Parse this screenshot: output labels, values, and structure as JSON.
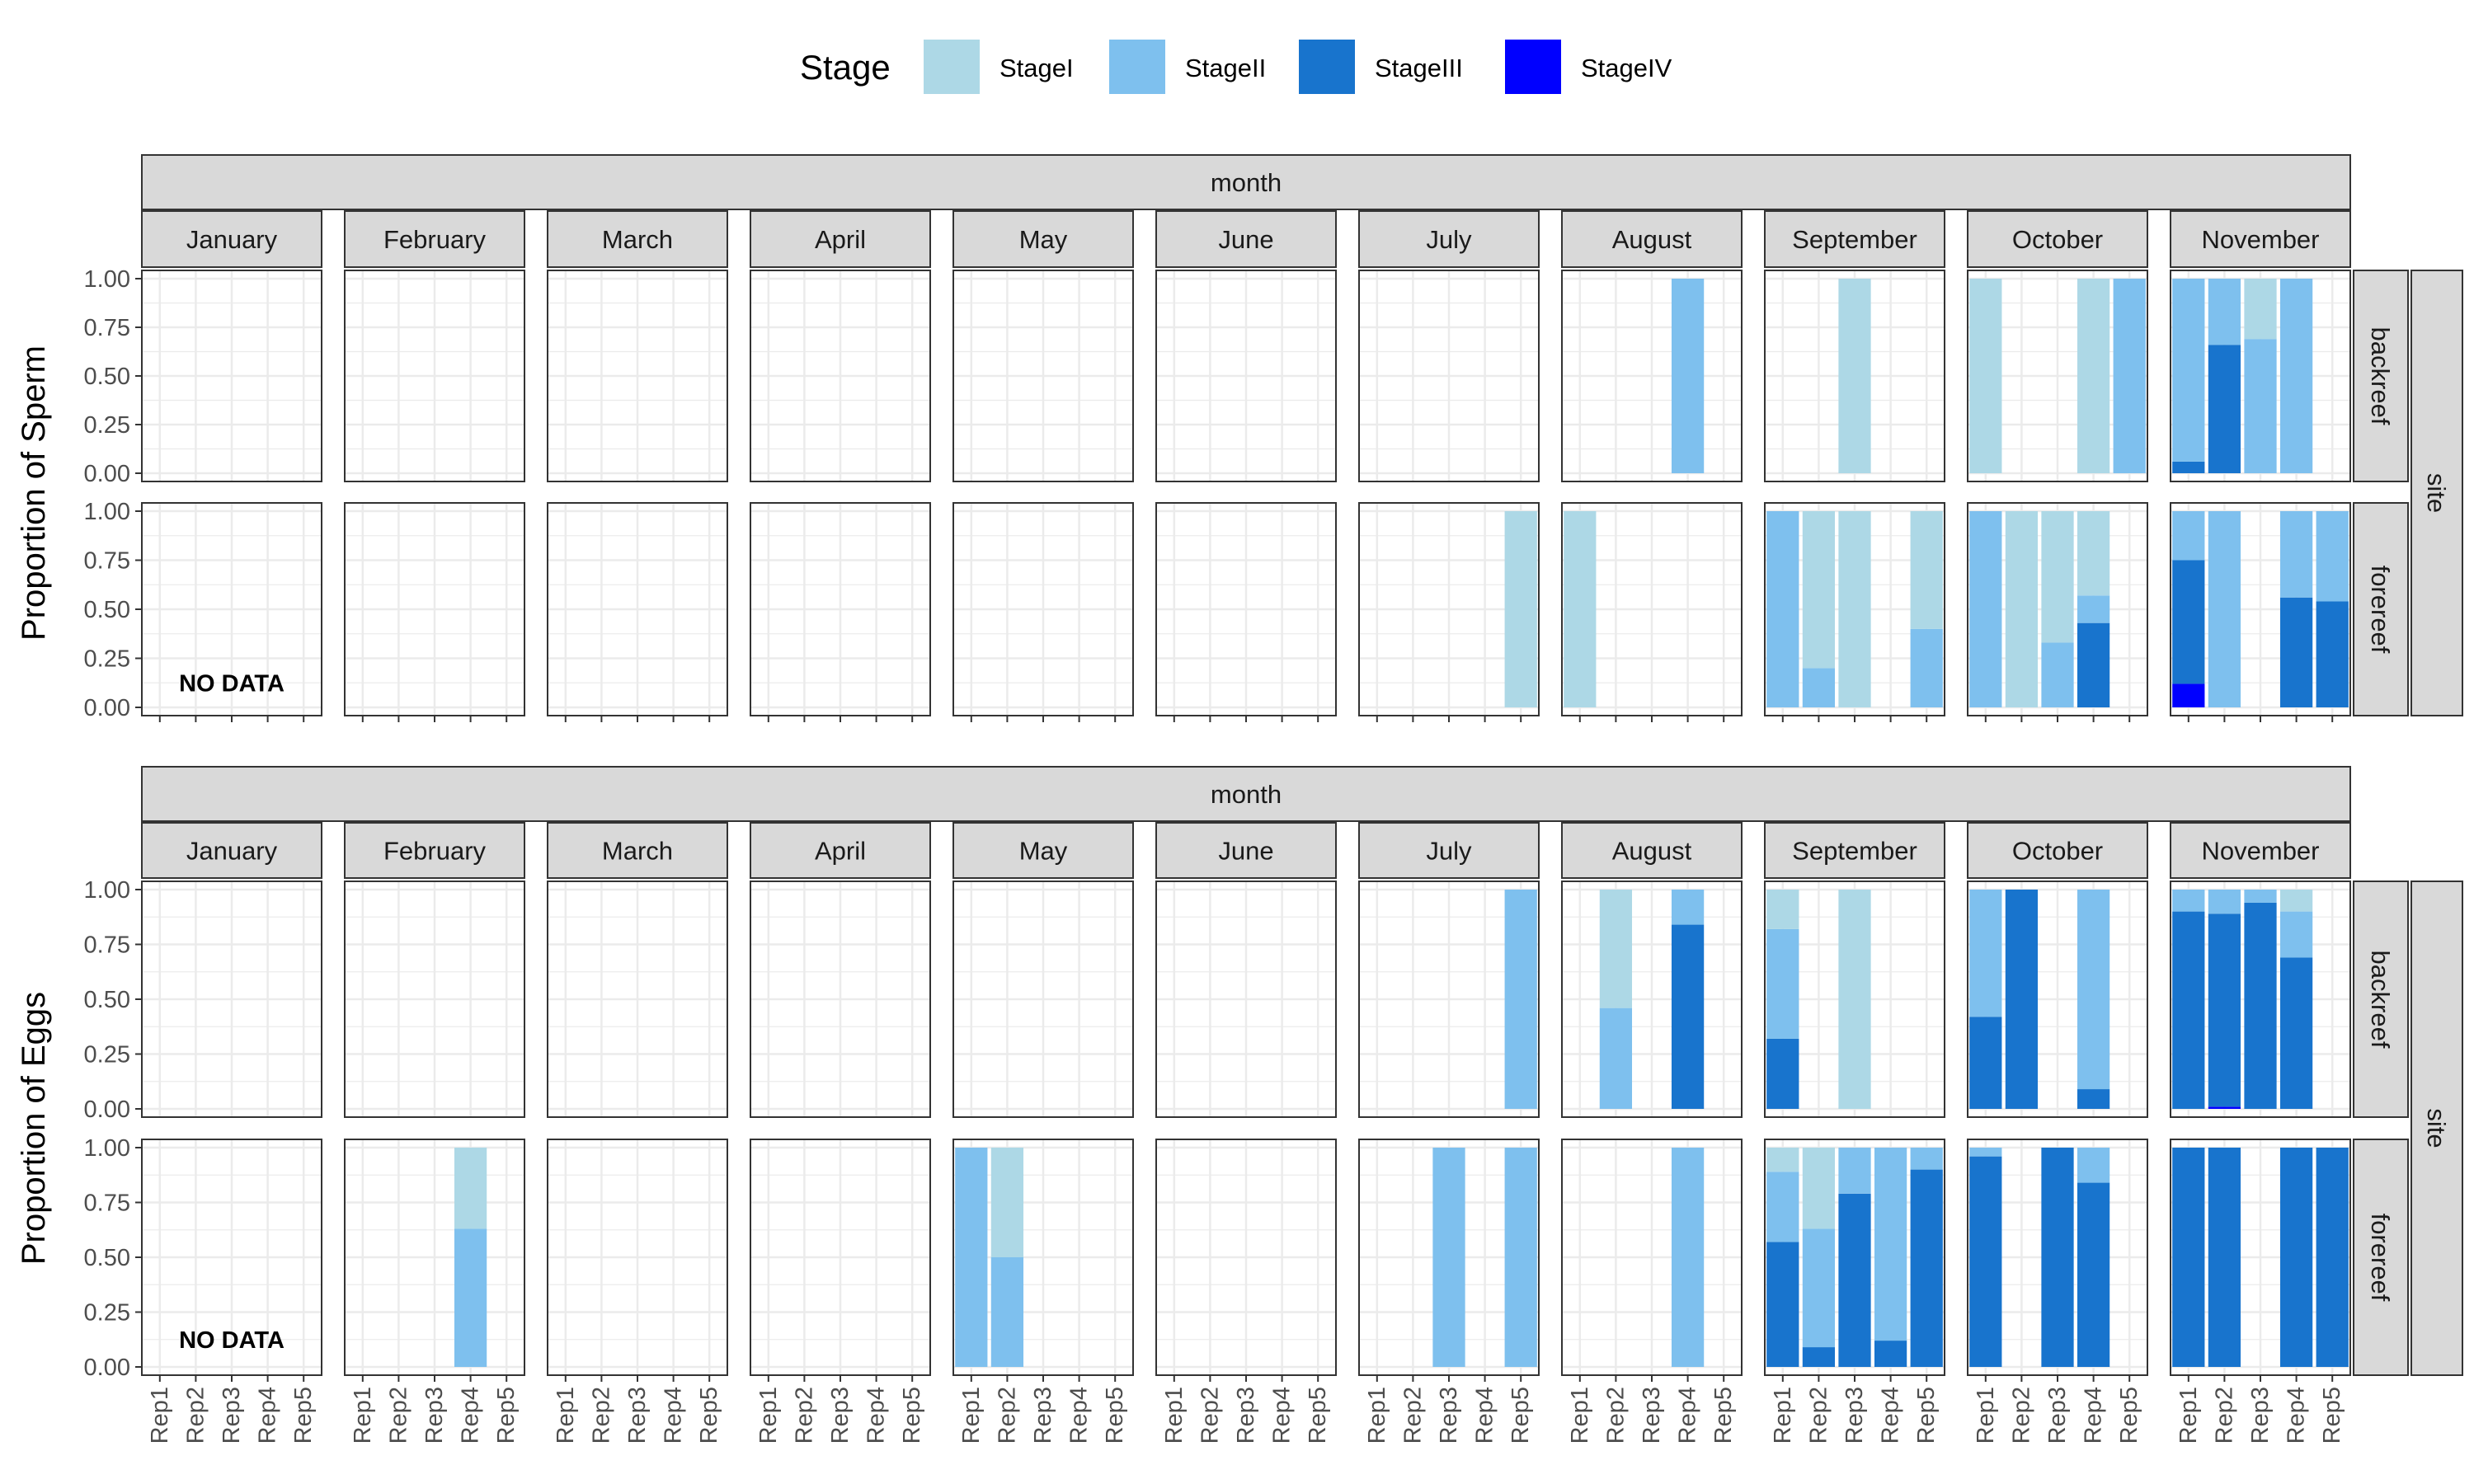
{
  "legend": {
    "title": "Stage",
    "entries": [
      {
        "label": "StageI",
        "color": "#ADD8E6"
      },
      {
        "label": "StageII",
        "color": "#7EC0EE"
      },
      {
        "label": "StageIII",
        "color": "#1874CD"
      },
      {
        "label": "StageIV",
        "color": "#0000FF"
      }
    ]
  },
  "chart_data": [
    {
      "type": "bar",
      "title": "",
      "facet_col_title": "month",
      "facet_row_title": "site",
      "ylabel": "Proportion of Sperm",
      "ylim": [
        0,
        1
      ],
      "yticks": [
        "0.00",
        "0.25",
        "0.50",
        "0.75",
        "1.00"
      ],
      "months": [
        "January",
        "February",
        "March",
        "April",
        "May",
        "June",
        "July",
        "August",
        "September",
        "October",
        "November"
      ],
      "sites": [
        "backreef",
        "forereef"
      ],
      "categories": [
        "Rep1",
        "Rep2",
        "Rep3",
        "Rep4",
        "Rep5"
      ],
      "show_x_labels": false,
      "annotations": [
        {
          "site": "forereef",
          "month": "January",
          "text": "NO DATA"
        }
      ],
      "bars": [
        {
          "site": "backreef",
          "month": "August",
          "rep": "Rep4",
          "StageII": 1.0
        },
        {
          "site": "backreef",
          "month": "September",
          "rep": "Rep3",
          "StageI": 1.0
        },
        {
          "site": "backreef",
          "month": "October",
          "rep": "Rep1",
          "StageI": 1.0
        },
        {
          "site": "backreef",
          "month": "October",
          "rep": "Rep4",
          "StageI": 1.0
        },
        {
          "site": "backreef",
          "month": "October",
          "rep": "Rep5",
          "StageII": 1.0
        },
        {
          "site": "backreef",
          "month": "November",
          "rep": "Rep1",
          "StageIII": 0.06,
          "StageII": 0.94
        },
        {
          "site": "backreef",
          "month": "November",
          "rep": "Rep2",
          "StageIII": 0.66,
          "StageII": 0.34
        },
        {
          "site": "backreef",
          "month": "November",
          "rep": "Rep3",
          "StageII": 0.69,
          "StageI": 0.31
        },
        {
          "site": "backreef",
          "month": "November",
          "rep": "Rep4",
          "StageII": 1.0
        },
        {
          "site": "forereef",
          "month": "July",
          "rep": "Rep5",
          "StageI": 1.0
        },
        {
          "site": "forereef",
          "month": "August",
          "rep": "Rep1",
          "StageI": 1.0
        },
        {
          "site": "forereef",
          "month": "September",
          "rep": "Rep1",
          "StageII": 1.0
        },
        {
          "site": "forereef",
          "month": "September",
          "rep": "Rep2",
          "StageII": 0.2,
          "StageI": 0.8
        },
        {
          "site": "forereef",
          "month": "September",
          "rep": "Rep3",
          "StageI": 1.0
        },
        {
          "site": "forereef",
          "month": "September",
          "rep": "Rep5",
          "StageII": 0.4,
          "StageI": 0.6
        },
        {
          "site": "forereef",
          "month": "October",
          "rep": "Rep1",
          "StageII": 1.0
        },
        {
          "site": "forereef",
          "month": "October",
          "rep": "Rep2",
          "StageI": 1.0
        },
        {
          "site": "forereef",
          "month": "October",
          "rep": "Rep3",
          "StageII": 0.33,
          "StageI": 0.67
        },
        {
          "site": "forereef",
          "month": "October",
          "rep": "Rep4",
          "StageIII": 0.43,
          "StageII": 0.14,
          "StageI": 0.43
        },
        {
          "site": "forereef",
          "month": "November",
          "rep": "Rep1",
          "StageIV": 0.12,
          "StageIII": 0.63,
          "StageII": 0.25
        },
        {
          "site": "forereef",
          "month": "November",
          "rep": "Rep2",
          "StageII": 1.0
        },
        {
          "site": "forereef",
          "month": "November",
          "rep": "Rep4",
          "StageIII": 0.56,
          "StageII": 0.44
        },
        {
          "site": "forereef",
          "month": "November",
          "rep": "Rep5",
          "StageIII": 0.54,
          "StageII": 0.46
        }
      ]
    },
    {
      "type": "bar",
      "title": "",
      "facet_col_title": "month",
      "facet_row_title": "site",
      "ylabel": "Proportion of Eggs",
      "ylim": [
        0,
        1
      ],
      "yticks": [
        "0.00",
        "0.25",
        "0.50",
        "0.75",
        "1.00"
      ],
      "months": [
        "January",
        "February",
        "March",
        "April",
        "May",
        "June",
        "July",
        "August",
        "September",
        "October",
        "November"
      ],
      "sites": [
        "backreef",
        "forereef"
      ],
      "categories": [
        "Rep1",
        "Rep2",
        "Rep3",
        "Rep4",
        "Rep5"
      ],
      "show_x_labels": true,
      "annotations": [
        {
          "site": "forereef",
          "month": "January",
          "text": "NO DATA"
        }
      ],
      "bars": [
        {
          "site": "backreef",
          "month": "July",
          "rep": "Rep5",
          "StageII": 1.0
        },
        {
          "site": "backreef",
          "month": "August",
          "rep": "Rep2",
          "StageII": 0.46,
          "StageI": 0.54
        },
        {
          "site": "backreef",
          "month": "August",
          "rep": "Rep4",
          "StageIII": 0.84,
          "StageII": 0.16
        },
        {
          "site": "backreef",
          "month": "September",
          "rep": "Rep1",
          "StageIII": 0.32,
          "StageII": 0.5,
          "StageI": 0.18
        },
        {
          "site": "backreef",
          "month": "September",
          "rep": "Rep3",
          "StageI": 1.0
        },
        {
          "site": "backreef",
          "month": "October",
          "rep": "Rep1",
          "StageIII": 0.42,
          "StageII": 0.58
        },
        {
          "site": "backreef",
          "month": "October",
          "rep": "Rep2",
          "StageIII": 1.0
        },
        {
          "site": "backreef",
          "month": "October",
          "rep": "Rep4",
          "StageIII": 0.09,
          "StageII": 0.91
        },
        {
          "site": "backreef",
          "month": "November",
          "rep": "Rep1",
          "StageIII": 0.9,
          "StageII": 0.1
        },
        {
          "site": "backreef",
          "month": "November",
          "rep": "Rep2",
          "StageIV": 0.01,
          "StageIII": 0.88,
          "StageII": 0.11
        },
        {
          "site": "backreef",
          "month": "November",
          "rep": "Rep3",
          "StageIII": 0.94,
          "StageII": 0.06
        },
        {
          "site": "backreef",
          "month": "November",
          "rep": "Rep4",
          "StageIII": 0.69,
          "StageII": 0.21,
          "StageI": 0.1
        },
        {
          "site": "forereef",
          "month": "February",
          "rep": "Rep4",
          "StageII": 0.63,
          "StageI": 0.37
        },
        {
          "site": "forereef",
          "month": "May",
          "rep": "Rep1",
          "StageII": 1.0
        },
        {
          "site": "forereef",
          "month": "May",
          "rep": "Rep2",
          "StageII": 0.5,
          "StageI": 0.5
        },
        {
          "site": "forereef",
          "month": "July",
          "rep": "Rep3",
          "StageII": 1.0
        },
        {
          "site": "forereef",
          "month": "July",
          "rep": "Rep5",
          "StageII": 1.0
        },
        {
          "site": "forereef",
          "month": "August",
          "rep": "Rep4",
          "StageII": 1.0
        },
        {
          "site": "forereef",
          "month": "September",
          "rep": "Rep1",
          "StageIII": 0.57,
          "StageII": 0.32,
          "StageI": 0.11
        },
        {
          "site": "forereef",
          "month": "September",
          "rep": "Rep2",
          "StageIII": 0.09,
          "StageII": 0.54,
          "StageI": 0.37
        },
        {
          "site": "forereef",
          "month": "September",
          "rep": "Rep3",
          "StageIII": 0.79,
          "StageII": 0.21
        },
        {
          "site": "forereef",
          "month": "September",
          "rep": "Rep4",
          "StageIII": 0.12,
          "StageII": 0.88
        },
        {
          "site": "forereef",
          "month": "September",
          "rep": "Rep5",
          "StageIII": 0.9,
          "StageII": 0.1
        },
        {
          "site": "forereef",
          "month": "October",
          "rep": "Rep1",
          "StageIII": 0.96,
          "StageII": 0.04
        },
        {
          "site": "forereef",
          "month": "October",
          "rep": "Rep3",
          "StageIII": 1.0
        },
        {
          "site": "forereef",
          "month": "October",
          "rep": "Rep4",
          "StageIII": 0.84,
          "StageII": 0.16
        },
        {
          "site": "forereef",
          "month": "November",
          "rep": "Rep1",
          "StageIII": 1.0
        },
        {
          "site": "forereef",
          "month": "November",
          "rep": "Rep2",
          "StageIII": 1.0
        },
        {
          "site": "forereef",
          "month": "November",
          "rep": "Rep4",
          "StageIII": 1.0
        },
        {
          "site": "forereef",
          "month": "November",
          "rep": "Rep5",
          "StageIII": 1.0
        }
      ]
    }
  ]
}
